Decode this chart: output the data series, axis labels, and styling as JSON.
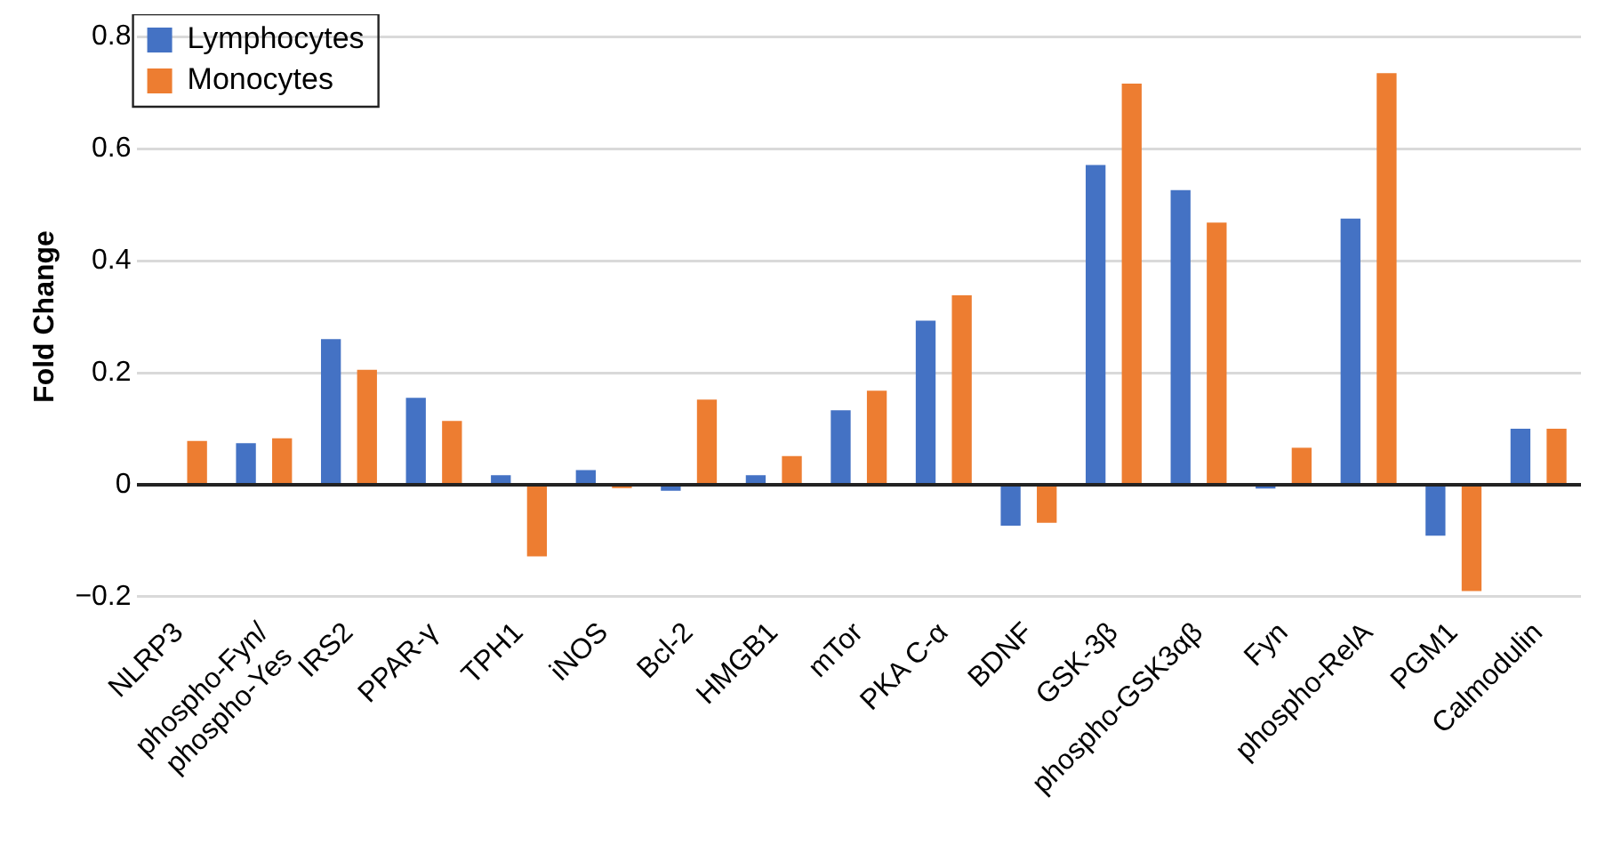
{
  "chart_data": {
    "type": "bar",
    "ylabel": "Fold Change",
    "categories": [
      "NLRP3",
      "phospho-Fyn/\nphospho-Yes",
      "IRS2",
      "PPAR-γ",
      "TPH1",
      "iNOS",
      "Bcl-2",
      "HMGB1",
      "mTor",
      "PKA C-α",
      "BDNF",
      "GSK-3β",
      "phospho-GSK3αβ",
      "Fyn",
      "phospho-RelA",
      "PGM1",
      "Calmodulin"
    ],
    "series": [
      {
        "name": "Lymphocytes",
        "color": "#4472c4",
        "values": [
          0,
          0.074,
          0.26,
          0.155,
          0.017,
          0.026,
          -0.011,
          0.017,
          0.133,
          0.293,
          -0.073,
          0.571,
          0.526,
          -0.007,
          0.475,
          -0.091,
          0.1
        ]
      },
      {
        "name": "Monocytes",
        "color": "#ed7d31",
        "values": [
          0.078,
          0.083,
          0.205,
          0.114,
          -0.128,
          -0.006,
          0.152,
          0.051,
          0.168,
          0.338,
          -0.068,
          0.716,
          0.468,
          0.066,
          0.735,
          -0.19,
          0.1
        ]
      }
    ],
    "ylim": [
      -0.2,
      0.8
    ],
    "yticks": [
      {
        "value": -0.2,
        "label": "−0.2"
      },
      0,
      0.2,
      0.4,
      0.6,
      0.8
    ],
    "grid": "y",
    "legend": "top left"
  }
}
